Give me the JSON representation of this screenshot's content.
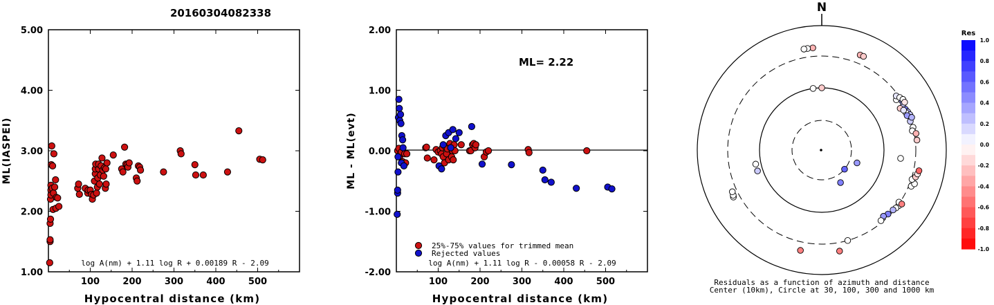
{
  "title": "20160304082338",
  "chart_data": [
    {
      "type": "scatter",
      "xlabel": "Hypocentral distance (km)",
      "ylabel": "ML(IASPEI)",
      "xlim": [
        0,
        600
      ],
      "ylim": [
        1.0,
        5.0
      ],
      "yticks": [
        "1.00",
        "2.00",
        "3.00",
        "4.00",
        "5.00"
      ],
      "xticks": [
        "100",
        "200",
        "300",
        "400",
        "500"
      ],
      "formula": "log A(nm) + 1.11 log R + 0.00189 R - 2.09",
      "colors": {
        "point": "#cc1111"
      },
      "points": [
        [
          3,
          1.15
        ],
        [
          4,
          1.5
        ],
        [
          4,
          1.53
        ],
        [
          4,
          1.8
        ],
        [
          5,
          1.87
        ],
        [
          5,
          2.2
        ],
        [
          6,
          2.35
        ],
        [
          6,
          2.43
        ],
        [
          6,
          2.27
        ],
        [
          7,
          2.77
        ],
        [
          8,
          3.08
        ],
        [
          9,
          2.38
        ],
        [
          10,
          2.75
        ],
        [
          11,
          2.03
        ],
        [
          12,
          2.3
        ],
        [
          13,
          2.95
        ],
        [
          15,
          2.4
        ],
        [
          17,
          2.52
        ],
        [
          18,
          2.05
        ],
        [
          19,
          2.23
        ],
        [
          22,
          2.22
        ],
        [
          25,
          2.08
        ],
        [
          70,
          2.38
        ],
        [
          72,
          2.45
        ],
        [
          74,
          2.28
        ],
        [
          88,
          2.38
        ],
        [
          94,
          2.3
        ],
        [
          95,
          2.35
        ],
        [
          100,
          2.35
        ],
        [
          103,
          2.28
        ],
        [
          105,
          2.2
        ],
        [
          108,
          2.27
        ],
        [
          110,
          2.5
        ],
        [
          112,
          2.62
        ],
        [
          112,
          2.7
        ],
        [
          113,
          2.78
        ],
        [
          115,
          2.3
        ],
        [
          117,
          2.4
        ],
        [
          118,
          2.55
        ],
        [
          120,
          2.7
        ],
        [
          120,
          2.78
        ],
        [
          122,
          2.45
        ],
        [
          124,
          2.6
        ],
        [
          126,
          2.75
        ],
        [
          128,
          2.88
        ],
        [
          130,
          2.68
        ],
        [
          132,
          2.58
        ],
        [
          134,
          2.72
        ],
        [
          136,
          2.38
        ],
        [
          137,
          2.7
        ],
        [
          138,
          2.45
        ],
        [
          140,
          2.8
        ],
        [
          155,
          2.93
        ],
        [
          175,
          2.7
        ],
        [
          178,
          2.65
        ],
        [
          182,
          3.06
        ],
        [
          185,
          2.78
        ],
        [
          188,
          2.77
        ],
        [
          190,
          2.73
        ],
        [
          193,
          2.8
        ],
        [
          210,
          2.55
        ],
        [
          212,
          2.5
        ],
        [
          215,
          2.75
        ],
        [
          218,
          2.73
        ],
        [
          220,
          2.68
        ],
        [
          275,
          2.65
        ],
        [
          315,
          3.0
        ],
        [
          317,
          2.95
        ],
        [
          350,
          2.77
        ],
        [
          352,
          2.6
        ],
        [
          370,
          2.6
        ],
        [
          428,
          2.65
        ],
        [
          455,
          3.33
        ],
        [
          505,
          2.86
        ],
        [
          512,
          2.85
        ]
      ]
    },
    {
      "type": "scatter",
      "xlabel": "Hypocentral distance (km)",
      "ylabel": "ML - ML(evt)",
      "xlim": [
        0,
        600
      ],
      "ylim": [
        -2.0,
        2.0
      ],
      "yticks": [
        "-2.00",
        "-1.00",
        "0.00",
        "1.00",
        "2.00"
      ],
      "xticks": [
        "100",
        "200",
        "300",
        "400",
        "500"
      ],
      "annotation": "ML= 2.22",
      "formula": "log A(nm) + 1.11 log R - 0.00058 R - 2.09",
      "legend": [
        "25%-75% values for trimmed mean",
        "Rejected values"
      ],
      "colors": {
        "trimmed": "#cc1111",
        "rejected": "#1111cc"
      },
      "series": [
        {
          "name": "25%-75% values for trimmed mean",
          "points": [
            [
              3,
              0.0
            ],
            [
              6,
              0.04
            ],
            [
              8,
              -0.1
            ],
            [
              10,
              -0.05
            ],
            [
              12,
              -0.02
            ],
            [
              15,
              -0.18
            ],
            [
              20,
              -0.05
            ],
            [
              22,
              -0.2
            ],
            [
              25,
              -0.05
            ],
            [
              70,
              0.05
            ],
            [
              72,
              0.06
            ],
            [
              74,
              -0.12
            ],
            [
              90,
              -0.15
            ],
            [
              95,
              0.02
            ],
            [
              100,
              -0.02
            ],
            [
              105,
              0.0
            ],
            [
              108,
              -0.05
            ],
            [
              110,
              0.05
            ],
            [
              112,
              -0.1
            ],
            [
              115,
              -0.2
            ],
            [
              118,
              0.06
            ],
            [
              120,
              -0.05
            ],
            [
              122,
              0.03
            ],
            [
              125,
              -0.15
            ],
            [
              128,
              0.12
            ],
            [
              130,
              0.05
            ],
            [
              132,
              -0.1
            ],
            [
              134,
              0.0
            ],
            [
              136,
              -0.15
            ],
            [
              138,
              0.1
            ],
            [
              140,
              0.0
            ],
            [
              155,
              0.1
            ],
            [
              175,
              0.0
            ],
            [
              178,
              0.0
            ],
            [
              182,
              0.1
            ],
            [
              185,
              0.12
            ],
            [
              188,
              0.05
            ],
            [
              190,
              0.1
            ],
            [
              210,
              -0.1
            ],
            [
              215,
              -0.02
            ],
            [
              220,
              0.0
            ],
            [
              315,
              0.02
            ],
            [
              317,
              -0.03
            ],
            [
              455,
              0.0
            ]
          ]
        },
        {
          "name": "Rejected values",
          "points": [
            [
              2,
              -1.05
            ],
            [
              3,
              -0.7
            ],
            [
              3,
              -0.65
            ],
            [
              4,
              -0.35
            ],
            [
              4,
              -0.1
            ],
            [
              5,
              0.55
            ],
            [
              6,
              0.85
            ],
            [
              7,
              0.7
            ],
            [
              8,
              0.5
            ],
            [
              10,
              0.6
            ],
            [
              11,
              0.45
            ],
            [
              12,
              -0.2
            ],
            [
              13,
              0.25
            ],
            [
              15,
              0.18
            ],
            [
              16,
              0.05
            ],
            [
              18,
              -0.25
            ],
            [
              102,
              -0.25
            ],
            [
              108,
              -0.3
            ],
            [
              112,
              0.1
            ],
            [
              118,
              0.25
            ],
            [
              125,
              0.3
            ],
            [
              130,
              0.05
            ],
            [
              135,
              0.35
            ],
            [
              142,
              0.2
            ],
            [
              150,
              0.3
            ],
            [
              180,
              0.4
            ],
            [
              205,
              -0.22
            ],
            [
              275,
              -0.23
            ],
            [
              350,
              -0.32
            ],
            [
              355,
              -0.48
            ],
            [
              370,
              -0.52
            ],
            [
              430,
              -0.62
            ],
            [
              505,
              -0.6
            ],
            [
              515,
              -0.63
            ]
          ]
        }
      ]
    },
    {
      "type": "scatter",
      "subtype": "polar-residuals",
      "north_label": "N",
      "caption": [
        "Residuals as a function of azimuth and distance",
        "Center (10km), Circle at 30, 100, 300 and 1000 km"
      ],
      "colorbar": {
        "title": "Res",
        "labels": [
          "1.0",
          "0.8",
          "0.6",
          "0.4",
          "0.2",
          "0.0",
          "-0.2",
          "-0.4",
          "-0.6",
          "-0.8",
          "-1.0"
        ]
      },
      "points_az_dist_res": [
        [
          355,
          420,
          -0.3
        ],
        [
          352,
          420,
          0.0
        ],
        [
          350,
          420,
          0.0
        ],
        [
          22,
          420,
          -0.3
        ],
        [
          24,
          420,
          -0.2
        ],
        [
          58,
          300,
          0.4
        ],
        [
          60,
          300,
          0.3
        ],
        [
          62,
          280,
          0.2
        ],
        [
          56,
          260,
          0.0
        ],
        [
          62,
          250,
          -0.2
        ],
        [
          64,
          290,
          0.5
        ],
        [
          66,
          300,
          0.3
        ],
        [
          68,
          310,
          0.2
        ],
        [
          54,
          280,
          0.1
        ],
        [
          56,
          300,
          0.0
        ],
        [
          66,
          280,
          0.0
        ],
        [
          70,
          310,
          0.3
        ],
        [
          72,
          290,
          0.2
        ],
        [
          58,
          320,
          0.0
        ],
        [
          60,
          320,
          -0.1
        ],
        [
          64,
          270,
          0.1
        ],
        [
          68,
          280,
          0.4
        ],
        [
          70,
          320,
          0.3
        ],
        [
          76,
          300,
          0.0
        ],
        [
          78,
          285,
          0.0
        ],
        [
          80,
          320,
          -0.3
        ],
        [
          84,
          320,
          -0.2
        ],
        [
          96,
          180,
          0.0
        ],
        [
          112,
          330,
          0.0
        ],
        [
          110,
          360,
          0.0
        ],
        [
          108,
          310,
          0.0
        ],
        [
          106,
          345,
          -0.2
        ],
        [
          104,
          360,
          -0.1
        ],
        [
          102,
          370,
          -0.6
        ],
        [
          126,
          310,
          0.0
        ],
        [
          128,
          300,
          0.0
        ],
        [
          124,
          290,
          0.0
        ],
        [
          130,
          290,
          0.3
        ],
        [
          134,
          280,
          0.5
        ],
        [
          137,
          265,
          0.4
        ],
        [
          124,
          330,
          -0.5
        ],
        [
          140,
          280,
          0.0
        ],
        [
          164,
          300,
          0.0
        ],
        [
          170,
          420,
          -0.5
        ],
        [
          192,
          420,
          -0.5
        ],
        [
          242,
          380,
          0.0
        ],
        [
          243,
          370,
          0.0
        ],
        [
          245,
          360,
          0.0
        ],
        [
          258,
          120,
          0.0
        ],
        [
          252,
          120,
          0.2
        ],
        [
          352,
          100,
          0.0
        ],
        [
          360,
          100,
          -0.2
        ],
        [
          150,
          40,
          0.5
        ],
        [
          110,
          40,
          0.4
        ],
        [
          130,
          30,
          0.6
        ]
      ]
    }
  ]
}
